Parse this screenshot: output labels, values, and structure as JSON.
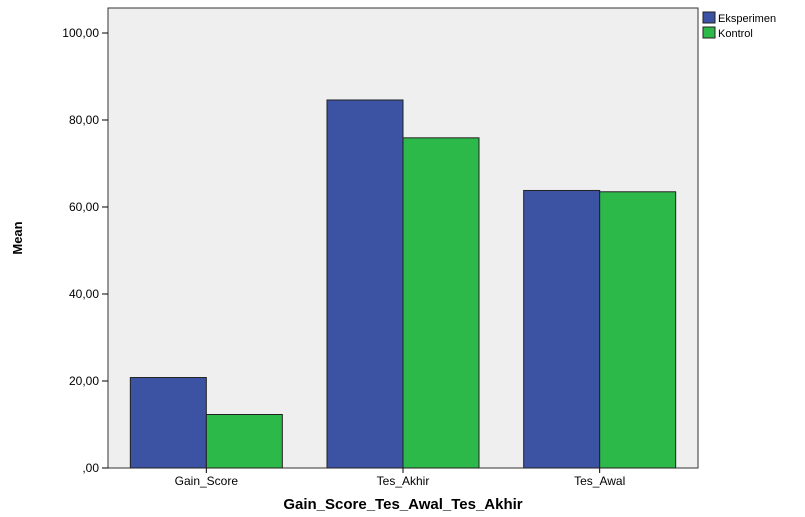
{
  "chart_data": {
    "type": "bar",
    "title": "",
    "xlabel": "Gain_Score_Tes_Awal_Tes_Akhir",
    "ylabel": "Mean",
    "categories": [
      "Gain_Score",
      "Tes_Akhir",
      "Tes_Awal"
    ],
    "series": [
      {
        "name": "Eksperimen",
        "values": [
          20.8,
          84.6,
          63.8
        ],
        "color": "#3c52a3"
      },
      {
        "name": "Kontrol",
        "values": [
          12.3,
          75.9,
          63.5
        ],
        "color": "#2db84a"
      }
    ],
    "ylim": [
      0,
      100
    ],
    "yticks": [
      0,
      20,
      40,
      60,
      80,
      100
    ],
    "ytick_labels": [
      ",00",
      "20,00",
      "40,00",
      "60,00",
      "80,00",
      "100,00"
    ],
    "grid": false,
    "legend_position": "top-right",
    "plot_background": "#efefef"
  }
}
